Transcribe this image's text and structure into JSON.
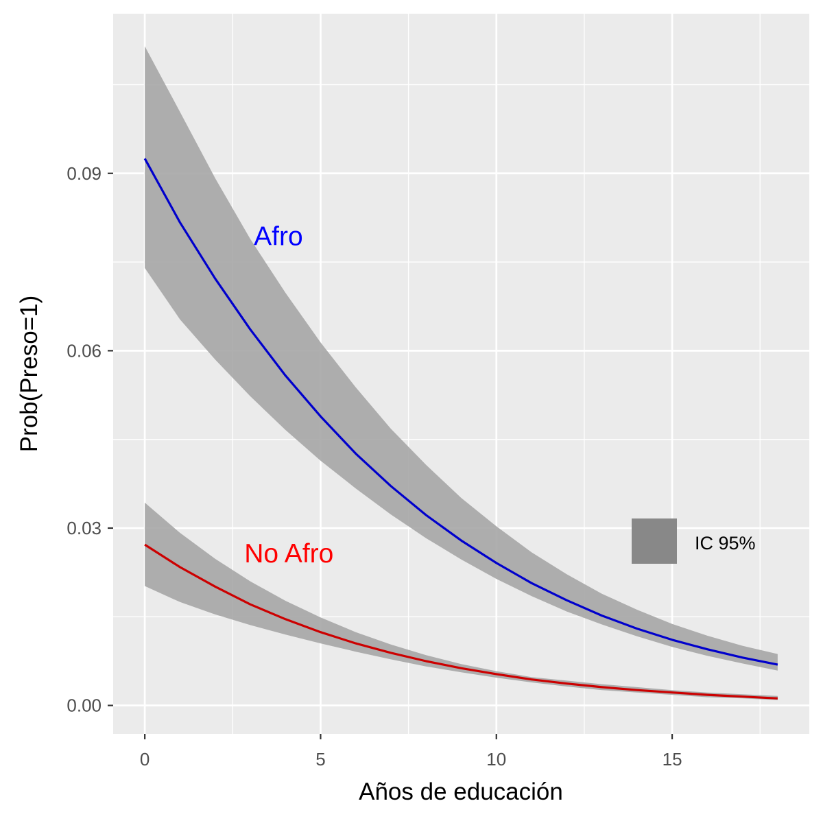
{
  "chart_data": {
    "type": "line",
    "xlabel": "Años de educación",
    "ylabel": "Prob(Preso=1)",
    "xlim": [
      -0.9,
      18.9
    ],
    "ylim": [
      -0.0048,
      0.117
    ],
    "x_ticks": [
      0,
      5,
      10,
      15
    ],
    "x_tick_labels": [
      "0",
      "5",
      "10",
      "15"
    ],
    "y_ticks": [
      0,
      0.03,
      0.06,
      0.09
    ],
    "y_tick_labels": [
      "0.00",
      "0.03",
      "0.06",
      "0.09"
    ],
    "grid": true,
    "x": [
      0,
      1,
      2,
      3,
      4,
      5,
      6,
      7,
      8,
      9,
      10,
      11,
      12,
      13,
      14,
      15,
      16,
      17,
      18
    ],
    "series": [
      {
        "name": "Afro",
        "color": "#0000cc",
        "values": [
          0.0925,
          0.0817,
          0.0722,
          0.0636,
          0.0558,
          0.0489,
          0.0426,
          0.0371,
          0.0322,
          0.0279,
          0.0241,
          0.0207,
          0.0178,
          0.0152,
          0.013,
          0.0111,
          0.0095,
          0.0081,
          0.0069
        ],
        "ci_lower": [
          0.074,
          0.0653,
          0.0585,
          0.0523,
          0.0466,
          0.0414,
          0.0367,
          0.0323,
          0.0283,
          0.0247,
          0.0214,
          0.0185,
          0.0159,
          0.0137,
          0.0117,
          0.0099,
          0.0084,
          0.0071,
          0.0059
        ],
        "ci_upper": [
          0.1115,
          0.1004,
          0.0892,
          0.0789,
          0.0698,
          0.0614,
          0.0538,
          0.0468,
          0.0407,
          0.0351,
          0.0303,
          0.0259,
          0.0222,
          0.0189,
          0.0162,
          0.0138,
          0.0118,
          0.0101,
          0.0087
        ]
      },
      {
        "name": "No Afro",
        "color": "#cc0000",
        "values": [
          0.0272,
          0.0234,
          0.0201,
          0.0171,
          0.0146,
          0.0124,
          0.0105,
          0.0089,
          0.0075,
          0.0063,
          0.0053,
          0.0044,
          0.0037,
          0.0031,
          0.0026,
          0.0022,
          0.0018,
          0.0015,
          0.0012
        ],
        "ci_lower": [
          0.0202,
          0.0175,
          0.0154,
          0.0136,
          0.012,
          0.0105,
          0.0091,
          0.0078,
          0.0066,
          0.0056,
          0.0047,
          0.0039,
          0.0032,
          0.0026,
          0.0022,
          0.0018,
          0.0014,
          0.0012,
          0.0009
        ],
        "ci_upper": [
          0.0343,
          0.0292,
          0.0248,
          0.021,
          0.0177,
          0.0149,
          0.0124,
          0.0103,
          0.0085,
          0.007,
          0.0058,
          0.0048,
          0.0042,
          0.0036,
          0.0031,
          0.0026,
          0.0022,
          0.0019,
          0.0016
        ]
      }
    ],
    "annotations": [
      {
        "text": "Afro",
        "x": 3.8,
        "y": 0.0795,
        "color": "#0000ff"
      },
      {
        "text": "No Afro",
        "x": 4.1,
        "y": 0.0258,
        "color": "#ff0000"
      }
    ],
    "legend": {
      "placement": "right",
      "label": "IC 95%",
      "swatch_color": "#888888"
    },
    "band_color": "#a6a6a6",
    "panel_color": "#ebebeb",
    "grid_color": "#ffffff"
  }
}
